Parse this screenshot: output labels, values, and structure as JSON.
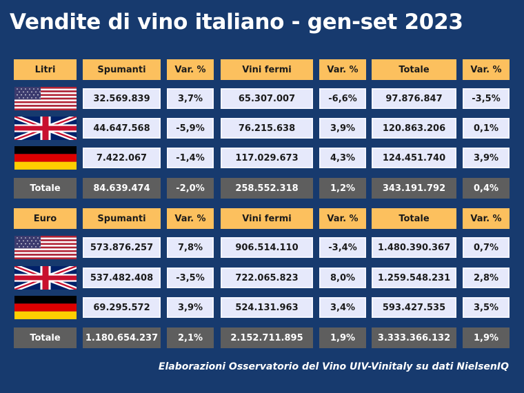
{
  "title": "Vendite di vino italiano - gen-set 2023",
  "footer": "Elaborazioni Osservatorio del Vino UIV-Vinitaly su dati NielsenIQ",
  "colors": {
    "background": "#173a6e",
    "header": "#fcc05e",
    "value_cell": "#e6e9fb",
    "total_row": "#5e5e5e"
  },
  "tables": [
    {
      "headers": [
        "Litri",
        "Spumanti",
        "Var. %",
        "Vini fermi",
        "Var. %",
        "Totale",
        "Var. %"
      ],
      "rows": [
        {
          "flag": "us-flag-icon",
          "values": [
            "32.569.839",
            "3,7%",
            "65.307.007",
            "-6,6%",
            "97.876.847",
            "-3,5%"
          ]
        },
        {
          "flag": "uk-flag-icon",
          "values": [
            "44.647.568",
            "-5,9%",
            "76.215.638",
            "3,9%",
            "120.863.206",
            "0,1%"
          ]
        },
        {
          "flag": "germany-flag-icon",
          "values": [
            "7.422.067",
            "-1,4%",
            "117.029.673",
            "4,3%",
            "124.451.740",
            "3,9%"
          ]
        }
      ],
      "total": [
        "Totale",
        "84.639.474",
        "-2,0%",
        "258.552.318",
        "1,2%",
        "343.191.792",
        "0,4%"
      ]
    },
    {
      "headers": [
        "Euro",
        "Spumanti",
        "Var. %",
        "Vini fermi",
        "Var. %",
        "Totale",
        "Var. %"
      ],
      "rows": [
        {
          "flag": "us-flag-icon",
          "values": [
            "573.876.257",
            "7,8%",
            "906.514.110",
            "-3,4%",
            "1.480.390.367",
            "0,7%"
          ]
        },
        {
          "flag": "uk-flag-icon",
          "values": [
            "537.482.408",
            "-3,5%",
            "722.065.823",
            "8,0%",
            "1.259.548.231",
            "2,8%"
          ]
        },
        {
          "flag": "germany-flag-icon",
          "values": [
            "69.295.572",
            "3,9%",
            "524.131.963",
            "3,4%",
            "593.427.535",
            "3,5%"
          ]
        }
      ],
      "total": [
        "Totale",
        "1.180.654.237",
        "2,1%",
        "2.152.711.895",
        "1,9%",
        "3.333.366.132",
        "1,9%"
      ]
    }
  ]
}
